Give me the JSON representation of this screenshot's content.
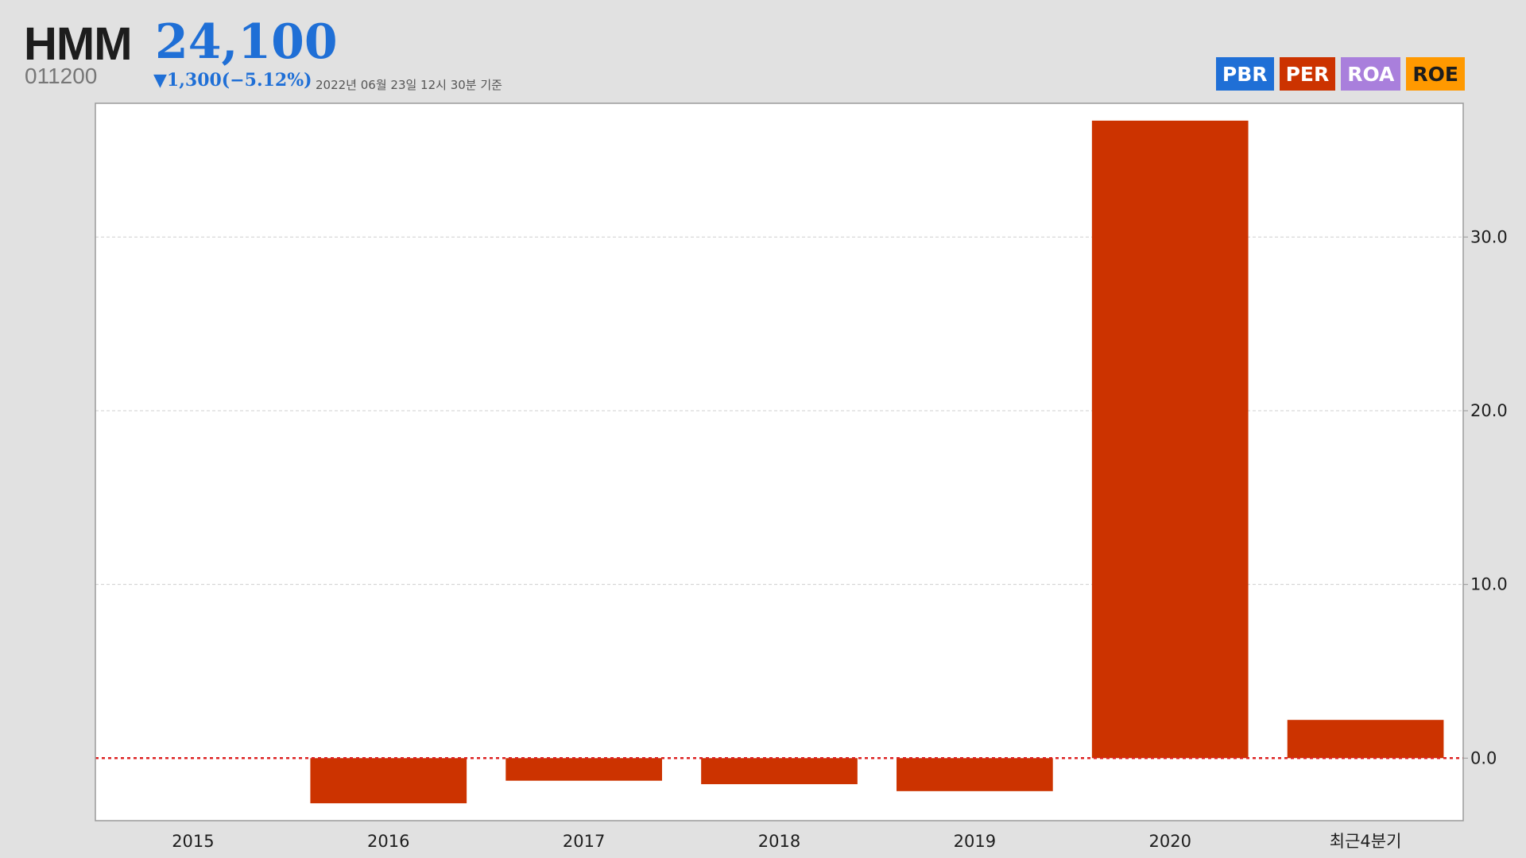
{
  "header": {
    "name": "HMM",
    "price": "24,100",
    "code": "011200",
    "change": "▼1,300(−5.12%)",
    "as_of": "2022년 06월 23일 12시 30분 기준"
  },
  "legend": [
    {
      "label": "PBR",
      "color": "#1f6fd6"
    },
    {
      "label": "PER",
      "color": "#cc3300"
    },
    {
      "label": "ROA",
      "color": "#a97fdc"
    },
    {
      "label": "ROE",
      "color": "#ff9900"
    }
  ],
  "chart_data": {
    "type": "bar",
    "categories": [
      "2015",
      "2016",
      "2017",
      "2018",
      "2019",
      "2020",
      "최근4분기"
    ],
    "series": [
      {
        "name": "PER",
        "color": "#cc3300",
        "values": [
          null,
          -2.6,
          -1.3,
          -1.5,
          -1.9,
          36.7,
          2.2
        ]
      }
    ],
    "ylim": [
      -3.6,
      37.7
    ],
    "yticks": [
      0,
      10,
      20,
      30
    ],
    "ytick_labels": [
      "0.0",
      "10.0",
      "20.0",
      "30.0"
    ],
    "grid": true,
    "zero_line_color": "#dd2222",
    "legend_position": "top-right"
  }
}
